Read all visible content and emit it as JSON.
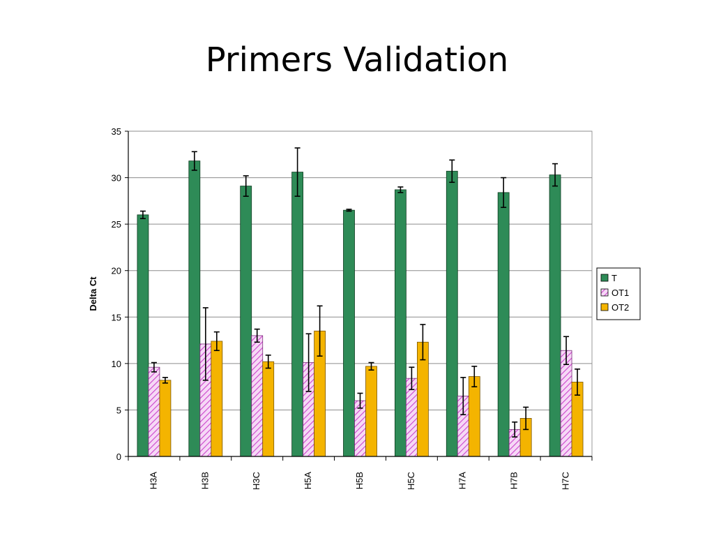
{
  "slide": {
    "title": "Primers Validation"
  },
  "chart_data": {
    "type": "bar",
    "title": "",
    "xlabel": "",
    "ylabel": "Delta Ct",
    "ylim": [
      0,
      35
    ],
    "yticks": [
      0,
      5,
      10,
      15,
      20,
      25,
      30,
      35
    ],
    "grid": true,
    "legend_position": "right",
    "categories": [
      "H3A",
      "H3B",
      "H3C",
      "H5A",
      "H5B",
      "H5C",
      "H7A",
      "H7B",
      "H7C"
    ],
    "series": [
      {
        "name": "T",
        "color": "#2e8b57",
        "pattern": "solid",
        "values": [
          26.0,
          31.8,
          29.1,
          30.6,
          26.5,
          28.7,
          30.7,
          28.4,
          30.3
        ],
        "errors": [
          0.4,
          1.0,
          1.1,
          2.6,
          0.1,
          0.3,
          1.2,
          1.6,
          1.2
        ]
      },
      {
        "name": "OT1",
        "color": "#e878e8",
        "pattern": "diagonal-hatch",
        "values": [
          9.6,
          12.1,
          13.0,
          10.1,
          6.0,
          8.4,
          6.5,
          2.9,
          11.4
        ],
        "errors": [
          0.5,
          3.9,
          0.7,
          3.1,
          0.8,
          1.2,
          2.0,
          0.8,
          1.5
        ]
      },
      {
        "name": "OT2",
        "color": "#f4b400",
        "pattern": "solid",
        "values": [
          8.2,
          12.4,
          10.2,
          13.5,
          9.7,
          12.3,
          8.6,
          4.1,
          8.0
        ],
        "errors": [
          0.3,
          1.0,
          0.7,
          2.7,
          0.4,
          1.9,
          1.1,
          1.2,
          1.4
        ]
      }
    ]
  }
}
